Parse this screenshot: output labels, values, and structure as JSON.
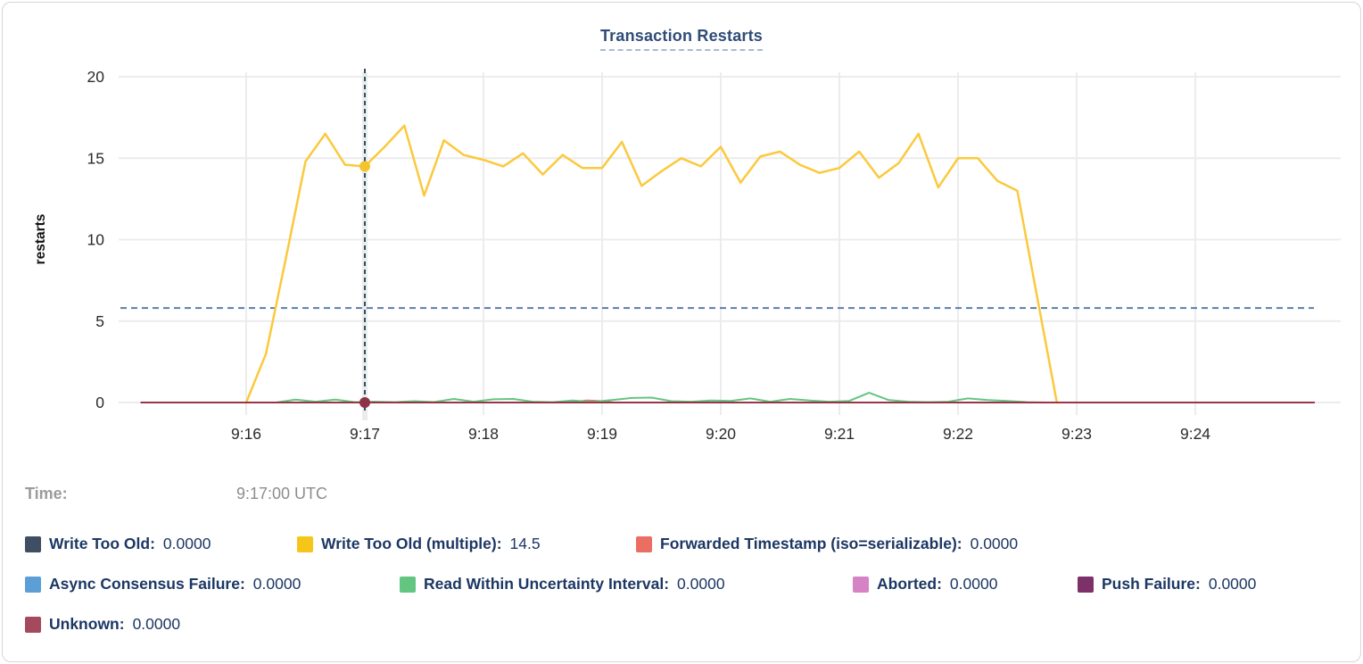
{
  "title": "Transaction Restarts",
  "time_row": {
    "label": "Time:",
    "value": "9:17:00 UTC"
  },
  "chart_data": {
    "type": "line",
    "title": "Transaction Restarts",
    "xlabel": "",
    "ylabel": "restarts",
    "ylim": [
      0,
      20
    ],
    "yticks": [
      0,
      5,
      10,
      15,
      20
    ],
    "xticks": [
      "9:16",
      "9:17",
      "9:18",
      "9:19",
      "9:20",
      "9:21",
      "9:22",
      "9:23",
      "9:24"
    ],
    "x_domain": [
      "9:15:07",
      "9:25:00"
    ],
    "grid": true,
    "legend_position": "bottom",
    "threshold_line": {
      "value": 5.8,
      "style": "dashed",
      "color": "#5B7FA6"
    },
    "crosshair": {
      "time": "9:17:00",
      "color": "#2E5266",
      "points": [
        {
          "series": "Write Too Old (multiple)",
          "value": 14.5,
          "color": "#F5C32C"
        },
        {
          "series": "Unknown",
          "value": 0,
          "color": "#8E3347"
        }
      ]
    },
    "series": [
      {
        "name": "Write Too Old",
        "color": "#3F4E63",
        "swatch_color": "#3F4E63",
        "value_at_cursor": "0.0000",
        "points": [
          [
            "9:15:07",
            0
          ],
          [
            "9:25:00",
            0
          ]
        ]
      },
      {
        "name": "Write Too Old (multiple)",
        "color": "#FBC93D",
        "swatch_color": "#F5C518",
        "width": 2.5,
        "value_at_cursor": "14.5",
        "points": [
          [
            "9:16:00",
            0
          ],
          [
            "9:16:10",
            3.0
          ],
          [
            "9:16:20",
            8.8
          ],
          [
            "9:16:30",
            14.8
          ],
          [
            "9:16:40",
            16.5
          ],
          [
            "9:16:50",
            14.6
          ],
          [
            "9:17:00",
            14.5
          ],
          [
            "9:17:10",
            15.7
          ],
          [
            "9:17:20",
            17.0
          ],
          [
            "9:17:30",
            12.7
          ],
          [
            "9:17:40",
            16.1
          ],
          [
            "9:17:50",
            15.2
          ],
          [
            "9:18:00",
            14.9
          ],
          [
            "9:18:10",
            14.5
          ],
          [
            "9:18:20",
            15.3
          ],
          [
            "9:18:30",
            14.0
          ],
          [
            "9:18:40",
            15.2
          ],
          [
            "9:18:50",
            14.4
          ],
          [
            "9:19:00",
            14.4
          ],
          [
            "9:19:10",
            16.0
          ],
          [
            "9:19:20",
            13.3
          ],
          [
            "9:19:30",
            14.2
          ],
          [
            "9:19:40",
            15.0
          ],
          [
            "9:19:50",
            14.5
          ],
          [
            "9:20:00",
            15.7
          ],
          [
            "9:20:10",
            13.5
          ],
          [
            "9:20:20",
            15.1
          ],
          [
            "9:20:30",
            15.4
          ],
          [
            "9:20:40",
            14.6
          ],
          [
            "9:20:50",
            14.1
          ],
          [
            "9:21:00",
            14.4
          ],
          [
            "9:21:10",
            15.4
          ],
          [
            "9:21:20",
            13.8
          ],
          [
            "9:21:30",
            14.7
          ],
          [
            "9:21:40",
            16.5
          ],
          [
            "9:21:50",
            13.2
          ],
          [
            "9:22:00",
            15.0
          ],
          [
            "9:22:10",
            15.0
          ],
          [
            "9:22:20",
            13.6
          ],
          [
            "9:22:30",
            13.0
          ],
          [
            "9:22:50",
            0
          ]
        ]
      },
      {
        "name": "Forwarded Timestamp (iso=serializable)",
        "color": "#EA6E61",
        "swatch_color": "#EA6E61",
        "value_at_cursor": "0.0000",
        "points": [
          [
            "9:15:07",
            0
          ],
          [
            "9:18:44",
            0
          ],
          [
            "9:18:52",
            0.12
          ],
          [
            "9:18:58",
            0.1
          ],
          [
            "9:19:06",
            0
          ],
          [
            "9:25:00",
            0
          ]
        ]
      },
      {
        "name": "Async Consensus Failure",
        "color": "#5C9FD6",
        "swatch_color": "#5C9FD6",
        "value_at_cursor": "0.0000",
        "points": [
          [
            "9:15:07",
            0
          ],
          [
            "9:25:00",
            0
          ]
        ]
      },
      {
        "name": "Read Within Uncertainty Interval",
        "color": "#62C681",
        "swatch_color": "#62C681",
        "value_at_cursor": "0.0000",
        "points": [
          [
            "9:16:15",
            0
          ],
          [
            "9:16:25",
            0.18
          ],
          [
            "9:16:35",
            0.05
          ],
          [
            "9:16:45",
            0.18
          ],
          [
            "9:16:55",
            0.02
          ],
          [
            "9:17:05",
            0.05
          ],
          [
            "9:17:15",
            0.02
          ],
          [
            "9:17:25",
            0.08
          ],
          [
            "9:17:35",
            0.03
          ],
          [
            "9:17:45",
            0.22
          ],
          [
            "9:17:55",
            0.05
          ],
          [
            "9:18:05",
            0.2
          ],
          [
            "9:18:15",
            0.22
          ],
          [
            "9:18:25",
            0.05
          ],
          [
            "9:18:35",
            0.02
          ],
          [
            "9:18:45",
            0.12
          ],
          [
            "9:18:55",
            0.04
          ],
          [
            "9:19:05",
            0.15
          ],
          [
            "9:19:15",
            0.28
          ],
          [
            "9:19:25",
            0.3
          ],
          [
            "9:19:35",
            0.08
          ],
          [
            "9:19:45",
            0.05
          ],
          [
            "9:19:55",
            0.12
          ],
          [
            "9:20:05",
            0.1
          ],
          [
            "9:20:15",
            0.25
          ],
          [
            "9:20:25",
            0.05
          ],
          [
            "9:20:35",
            0.22
          ],
          [
            "9:20:45",
            0.12
          ],
          [
            "9:20:55",
            0.05
          ],
          [
            "9:21:05",
            0.1
          ],
          [
            "9:21:15",
            0.6
          ],
          [
            "9:21:25",
            0.15
          ],
          [
            "9:21:35",
            0.05
          ],
          [
            "9:21:45",
            0.02
          ],
          [
            "9:21:55",
            0.05
          ],
          [
            "9:22:05",
            0.25
          ],
          [
            "9:22:15",
            0.15
          ],
          [
            "9:22:25",
            0.1
          ],
          [
            "9:22:35",
            0.02
          ],
          [
            "9:22:45",
            0
          ]
        ]
      },
      {
        "name": "Aborted",
        "color": "#D583C5",
        "swatch_color": "#D583C5",
        "value_at_cursor": "0.0000",
        "points": [
          [
            "9:15:07",
            0
          ],
          [
            "9:25:00",
            0
          ]
        ]
      },
      {
        "name": "Push Failure",
        "color": "#7D3069",
        "swatch_color": "#7D3069",
        "value_at_cursor": "0.0000",
        "points": [
          [
            "9:15:07",
            0
          ],
          [
            "9:25:00",
            0
          ]
        ]
      },
      {
        "name": "Unknown",
        "color": "#9A3448",
        "swatch_color": "#A54A5E",
        "value_at_cursor": "0.0000",
        "points": [
          [
            "9:15:07",
            0
          ],
          [
            "9:25:00",
            0
          ]
        ]
      }
    ],
    "legend_rows": [
      [
        0,
        1,
        2
      ],
      [
        3,
        4,
        5,
        6
      ],
      [
        7
      ]
    ]
  }
}
